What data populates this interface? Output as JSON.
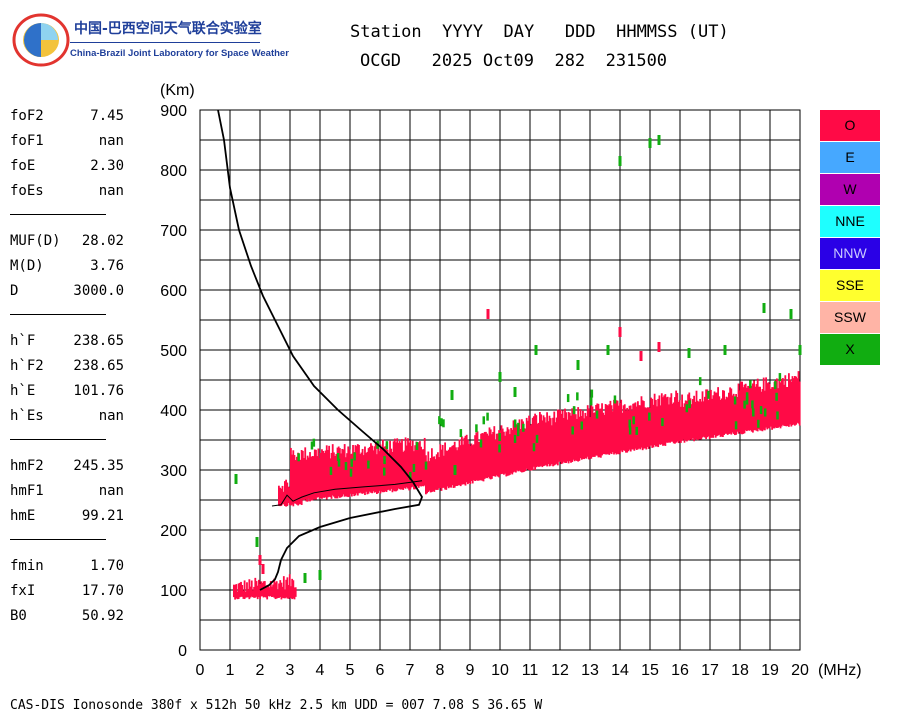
{
  "header": {
    "lab_name_cn": "中国-巴西空间天气联合实验室",
    "lab_name_en": "China-Brazil Joint Laboratory for Space Weather",
    "line1": "Station  YYYY  DAY   DDD  HHMMSS (UT)",
    "line2": "OCGD   2025 Oct09  282  231500"
  },
  "params": [
    {
      "name": "foF2",
      "value": "7.45"
    },
    {
      "name": "foF1",
      "value": "nan"
    },
    {
      "name": "foE",
      "value": "2.30"
    },
    {
      "name": "foEs",
      "value": "nan"
    },
    {
      "name": "MUF(D)",
      "value": "28.02"
    },
    {
      "name": "M(D)",
      "value": "3.76"
    },
    {
      "name": "D",
      "value": "3000.0"
    },
    {
      "name": "h`F",
      "value": "238.65"
    },
    {
      "name": "h`F2",
      "value": "238.65"
    },
    {
      "name": "h`E",
      "value": "101.76"
    },
    {
      "name": "h`Es",
      "value": "nan"
    },
    {
      "name": "hmF2",
      "value": "245.35"
    },
    {
      "name": "hmF1",
      "value": "nan"
    },
    {
      "name": "hmE",
      "value": "99.21"
    },
    {
      "name": "fmin",
      "value": "1.70"
    },
    {
      "name": "fxI",
      "value": "17.70"
    },
    {
      "name": "B0",
      "value": "50.92"
    }
  ],
  "legend": [
    {
      "label": "O",
      "color": "#ff0a46"
    },
    {
      "label": "E",
      "color": "#46a8ff"
    },
    {
      "label": "W",
      "color": "#b000b0"
    },
    {
      "label": "NNE",
      "color": "#1effff"
    },
    {
      "label": "NNW",
      "color": "#2a00e6"
    },
    {
      "label": "SSE",
      "color": "#ffff2e"
    },
    {
      "label": "SSW",
      "color": "#ffb4a6"
    },
    {
      "label": "X",
      "color": "#11ad11"
    }
  ],
  "footer": "CAS-DIS Ionosonde 380f x 512h 50 kHz 2.5 km UDD = 007 7.08 S 36.65 W",
  "chart_data": {
    "type": "scatter",
    "title": "",
    "xlabel": "(MHz)",
    "ylabel": "(Km)",
    "xlim": [
      0,
      20
    ],
    "ylim": [
      0,
      900
    ],
    "x_ticks": [
      "0",
      "1",
      "2",
      "3",
      "4",
      "5",
      "6",
      "7",
      "8",
      "9",
      "10",
      "11",
      "12",
      "13",
      "14",
      "15",
      "16",
      "17",
      "18",
      "19",
      "20"
    ],
    "y_ticks": [
      "0",
      "100",
      "200",
      "300",
      "400",
      "500",
      "600",
      "700",
      "800",
      "900"
    ],
    "grid": true,
    "series": [
      {
        "name": "O",
        "color": "#ff0a46",
        "bands": [
          {
            "x": [
              1.1,
              3.2
            ],
            "lower": [
              90,
              90
            ],
            "upper": [
              100,
              110
            ]
          },
          {
            "x": [
              2.6,
              3.4
            ],
            "lower": [
              245,
              245
            ],
            "upper": [
              270,
              275
            ]
          },
          {
            "x": [
              3.0,
              7.5
            ],
            "lower": [
              250,
              275
            ],
            "upper": [
              320,
              340
            ]
          },
          {
            "x": [
              7.5,
              11.5
            ],
            "lower": [
              265,
              310
            ],
            "upper": [
              320,
              385
            ]
          },
          {
            "x": [
              11.5,
              16.0
            ],
            "lower": [
              310,
              350
            ],
            "upper": [
              380,
              420
            ]
          },
          {
            "x": [
              16.0,
              20.0
            ],
            "lower": [
              350,
              380
            ],
            "upper": [
              410,
              450
            ]
          }
        ],
        "points": [
          [
            2.0,
            150
          ],
          [
            2.1,
            135
          ],
          [
            9.6,
            560
          ],
          [
            14.0,
            530
          ],
          [
            14.7,
            490
          ],
          [
            15.3,
            505
          ]
        ]
      },
      {
        "name": "X",
        "color": "#11ad11",
        "points": [
          [
            1.2,
            285
          ],
          [
            1.9,
            180
          ],
          [
            3.5,
            120
          ],
          [
            4.0,
            125
          ],
          [
            8.4,
            425
          ],
          [
            10.0,
            455
          ],
          [
            11.2,
            500
          ],
          [
            12.6,
            475
          ],
          [
            13.6,
            500
          ],
          [
            14.0,
            815
          ],
          [
            15.0,
            845
          ],
          [
            15.3,
            850
          ],
          [
            16.3,
            495
          ],
          [
            17.5,
            500
          ],
          [
            18.8,
            570
          ],
          [
            19.7,
            560
          ],
          [
            20.0,
            500
          ],
          [
            8.5,
            300
          ],
          [
            10.5,
            430
          ]
        ]
      },
      {
        "name": "profile_curve",
        "color": "#000000",
        "points": [
          [
            0.6,
            900
          ],
          [
            0.8,
            850
          ],
          [
            1.0,
            770
          ],
          [
            1.3,
            700
          ],
          [
            1.7,
            640
          ],
          [
            2.1,
            590
          ],
          [
            2.6,
            540
          ],
          [
            3.1,
            490
          ],
          [
            3.8,
            440
          ],
          [
            4.6,
            400
          ],
          [
            5.4,
            365
          ],
          [
            6.1,
            335
          ],
          [
            6.7,
            305
          ],
          [
            7.1,
            280
          ],
          [
            7.4,
            255
          ],
          [
            7.3,
            242
          ],
          [
            6.5,
            235
          ],
          [
            5.0,
            220
          ],
          [
            4.0,
            205
          ],
          [
            3.3,
            190
          ],
          [
            2.9,
            170
          ],
          [
            2.7,
            150
          ],
          [
            2.6,
            130
          ],
          [
            2.5,
            118
          ],
          [
            2.3,
            108
          ],
          [
            2.0,
            100
          ]
        ]
      },
      {
        "name": "trace_curve",
        "color": "#000000",
        "points": [
          [
            2.4,
            240
          ],
          [
            2.7,
            242
          ],
          [
            2.9,
            258
          ],
          [
            3.1,
            248
          ],
          [
            3.4,
            255
          ],
          [
            3.8,
            262
          ],
          [
            4.5,
            268
          ],
          [
            5.5,
            272
          ],
          [
            6.5,
            276
          ],
          [
            7.4,
            282
          ]
        ]
      }
    ]
  }
}
